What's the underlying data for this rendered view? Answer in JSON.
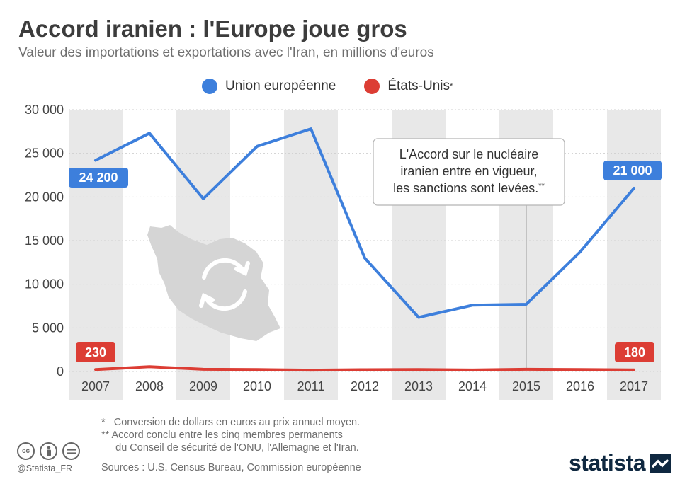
{
  "title": "Accord iranien : l'Europe joue gros",
  "subtitle": "Valeur des importations et exportations avec l'Iran, en millions d'euros",
  "legend": {
    "eu": "Union européenne",
    "us": "États-Unis",
    "us_mark": "*"
  },
  "colors": {
    "eu": "#3d7fdc",
    "us": "#dc3d34",
    "band": "#e8e8e8",
    "grid": "#cfcfcf"
  },
  "annotation": {
    "lines": [
      "L'Accord sur le nucléaire",
      "iranien entre en vigueur,",
      "les sanctions sont levées."
    ],
    "mark": "**",
    "year": "2015"
  },
  "labels": {
    "eu_start": "24 200",
    "eu_end": "21 000",
    "us_start": "230",
    "us_end": "180"
  },
  "chart_data": {
    "type": "line",
    "categories": [
      "2007",
      "2008",
      "2009",
      "2010",
      "2011",
      "2012",
      "2013",
      "2014",
      "2015",
      "2016",
      "2017"
    ],
    "series": [
      {
        "name": "Union européenne",
        "values": [
          24200,
          27300,
          19800,
          25800,
          27800,
          13000,
          6200,
          7600,
          7700,
          13700,
          21000
        ]
      },
      {
        "name": "États-Unis",
        "values": [
          230,
          550,
          250,
          220,
          150,
          200,
          230,
          170,
          250,
          220,
          180
        ]
      }
    ],
    "yticks": [
      "30 000",
      "25 000",
      "20 000",
      "15 000",
      "10 000",
      "5 000",
      "0"
    ],
    "ylim": [
      0,
      30000
    ],
    "grid": true,
    "legend_position": "top"
  },
  "footnotes": [
    "*   Conversion de dollars en euros au prix annuel moyen.",
    "** Accord conclu entre les cinq membres permanents",
    "     du Conseil de sécurité de l'ONU, l'Allemagne et l'Iran."
  ],
  "sources": "Sources : U.S. Census Bureau, Commission européenne",
  "handle": "@Statista_FR",
  "brand": "statista",
  "icons": [
    "cc-icon",
    "by-icon",
    "nd-icon",
    "iran-map-icon",
    "refresh-icon",
    "statista-logo-icon"
  ]
}
